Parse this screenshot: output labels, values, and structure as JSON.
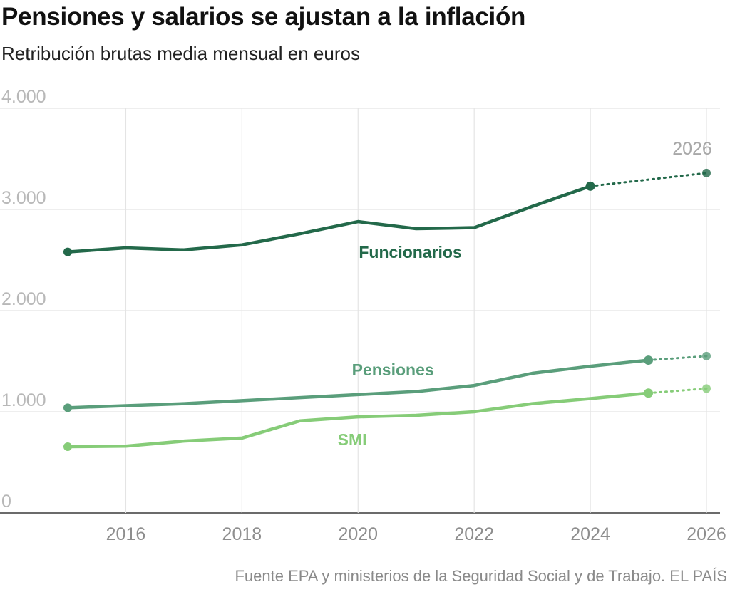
{
  "title": "Pensiones y salarios se ajustan a la inflación",
  "subtitle": "Retribución brutas media mensual en euros",
  "source": "Fuente EPA y ministerios de la Seguridad Social y de Trabajo. EL PAÍS",
  "chart_data": {
    "type": "line",
    "title": "Pensiones y salarios se ajustan a la inflación",
    "subtitle": "Retribución brutas media mensual en euros",
    "xlabel": "",
    "ylabel": "",
    "xlim": [
      2015,
      2026
    ],
    "ylim": [
      0,
      4000
    ],
    "x_ticks": [
      2016,
      2018,
      2020,
      2022,
      2024,
      2026
    ],
    "x_tick_labels": [
      "2016",
      "2018",
      "2020",
      "2022",
      "2024",
      "2026"
    ],
    "y_ticks": [
      0,
      1000,
      2000,
      3000,
      4000
    ],
    "y_tick_labels": [
      "0",
      "1.000",
      "2.000",
      "3.000",
      "4.000"
    ],
    "grid": true,
    "legend": "none",
    "annotations": [
      {
        "text": "2026",
        "x": 2026,
        "y": 3360
      }
    ],
    "series": [
      {
        "name": "Funcionarios",
        "color": "#23694a",
        "label_at": {
          "x": 2020.9,
          "y": 2520
        },
        "x": [
          2015,
          2016,
          2017,
          2018,
          2019,
          2020,
          2021,
          2022,
          2023,
          2024
        ],
        "values": [
          2580,
          2620,
          2600,
          2650,
          2760,
          2880,
          2810,
          2820,
          3030,
          3230
        ],
        "projection": {
          "x": [
            2024,
            2026
          ],
          "values": [
            3230,
            3360
          ]
        }
      },
      {
        "name": "Pensiones",
        "color": "#5a9e7b",
        "label_at": {
          "x": 2020.6,
          "y": 1360
        },
        "x": [
          2015,
          2016,
          2017,
          2018,
          2019,
          2020,
          2021,
          2022,
          2023,
          2024,
          2025
        ],
        "values": [
          1040,
          1060,
          1080,
          1110,
          1140,
          1170,
          1200,
          1260,
          1380,
          1450,
          1510
        ],
        "projection": {
          "x": [
            2025,
            2026
          ],
          "values": [
            1510,
            1550
          ]
        }
      },
      {
        "name": "SMI",
        "color": "#86cc78",
        "label_at": {
          "x": 2019.9,
          "y": 670
        },
        "x": [
          2015,
          2016,
          2017,
          2018,
          2019,
          2020,
          2021,
          2022,
          2023,
          2024,
          2025
        ],
        "values": [
          655,
          660,
          710,
          740,
          910,
          950,
          965,
          1000,
          1080,
          1130,
          1185
        ],
        "projection": {
          "x": [
            2025,
            2026
          ],
          "values": [
            1185,
            1230
          ]
        }
      }
    ]
  }
}
